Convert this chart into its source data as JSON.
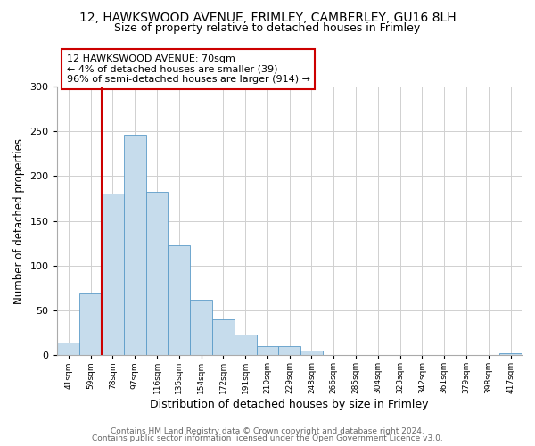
{
  "title": "12, HAWKSWOOD AVENUE, FRIMLEY, CAMBERLEY, GU16 8LH",
  "subtitle": "Size of property relative to detached houses in Frimley",
  "xlabel": "Distribution of detached houses by size in Frimley",
  "ylabel": "Number of detached properties",
  "bar_labels": [
    "41sqm",
    "59sqm",
    "78sqm",
    "97sqm",
    "116sqm",
    "135sqm",
    "154sqm",
    "172sqm",
    "191sqm",
    "210sqm",
    "229sqm",
    "248sqm",
    "266sqm",
    "285sqm",
    "304sqm",
    "323sqm",
    "342sqm",
    "361sqm",
    "379sqm",
    "398sqm",
    "417sqm"
  ],
  "bar_values": [
    14,
    69,
    180,
    246,
    182,
    123,
    62,
    40,
    23,
    10,
    10,
    5,
    0,
    0,
    0,
    0,
    0,
    0,
    0,
    0,
    2
  ],
  "bar_color": "#c6dcec",
  "bar_edge_color": "#5b9bc8",
  "vline_color": "#cc0000",
  "vline_x": 1.5,
  "ylim": [
    0,
    300
  ],
  "yticks": [
    0,
    50,
    100,
    150,
    200,
    250,
    300
  ],
  "annotation_text": "12 HAWKSWOOD AVENUE: 70sqm\n← 4% of detached houses are smaller (39)\n96% of semi-detached houses are larger (914) →",
  "annotation_box_edge": "#cc0000",
  "footer1": "Contains HM Land Registry data © Crown copyright and database right 2024.",
  "footer2": "Contains public sector information licensed under the Open Government Licence v3.0.",
  "title_fontsize": 10,
  "subtitle_fontsize": 9,
  "xlabel_fontsize": 9,
  "ylabel_fontsize": 8.5,
  "annotation_fontsize": 8,
  "footer_fontsize": 6.5,
  "grid_color": "#d0d0d0"
}
